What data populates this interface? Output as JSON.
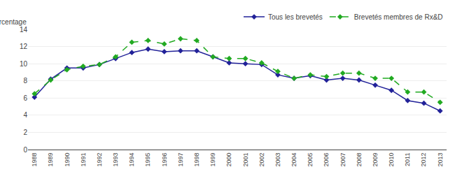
{
  "chart_data": {
    "type": "line",
    "ylabel": "Pourcentage",
    "x": [
      1988,
      1989,
      1990,
      1991,
      1992,
      1993,
      1994,
      1995,
      1996,
      1997,
      1998,
      1999,
      2000,
      2001,
      2002,
      2003,
      2004,
      2005,
      2006,
      2007,
      2008,
      2009,
      2010,
      2011,
      2012,
      2013
    ],
    "series": [
      {
        "name": "Tous les brevetés",
        "color": "#222299",
        "line_style": "solid",
        "marker": "diamond",
        "values": [
          6.1,
          8.2,
          9.5,
          9.5,
          9.9,
          10.6,
          11.3,
          11.7,
          11.4,
          11.5,
          11.5,
          10.8,
          10.1,
          10.0,
          9.9,
          8.7,
          8.3,
          8.6,
          8.1,
          8.3,
          8.1,
          7.5,
          6.9,
          5.7,
          5.4,
          4.5
        ]
      },
      {
        "name": "Brevetés membres de Rx&D",
        "color": "#22aa22",
        "line_style": "dashed",
        "marker": "diamond",
        "values": [
          6.5,
          8.1,
          9.3,
          9.7,
          9.9,
          10.8,
          12.5,
          12.7,
          12.3,
          12.9,
          12.7,
          10.8,
          10.6,
          10.6,
          10.1,
          9.1,
          8.3,
          8.7,
          8.5,
          8.9,
          8.9,
          8.3,
          8.3,
          6.7,
          6.7,
          5.5
        ]
      }
    ],
    "xlim": [
      1987.6,
      2013.4
    ],
    "xticks": [
      1988,
      1989,
      1990,
      1991,
      1992,
      1993,
      1994,
      1995,
      1996,
      1997,
      1998,
      1999,
      2000,
      2001,
      2002,
      2003,
      2004,
      2005,
      2006,
      2007,
      2008,
      2009,
      2010,
      2011,
      2012,
      2013
    ],
    "ylim": [
      0,
      14
    ],
    "yticks": [
      0,
      2,
      4,
      6,
      8,
      10,
      12,
      14
    ],
    "grid": true,
    "legend": "upper right"
  }
}
